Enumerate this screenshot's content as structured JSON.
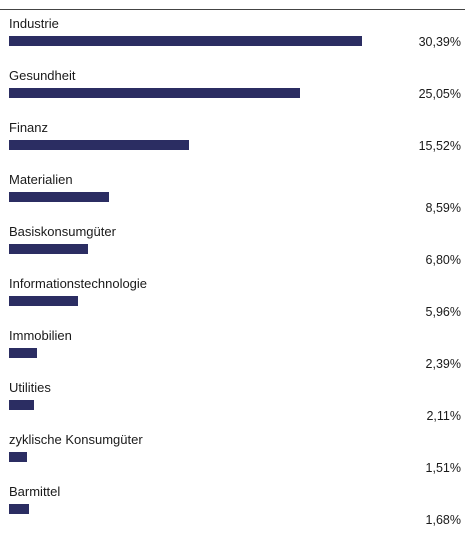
{
  "chart_data": {
    "type": "bar",
    "orientation": "horizontal",
    "categories": [
      "Industrie",
      "Gesundheit",
      "Finanz",
      "Materialien",
      "Basiskonsumgüter",
      "Informationstechnologie",
      "Immobilien",
      "Utilities",
      "zyklische Konsumgüter",
      "Barmittel"
    ],
    "values": [
      30.39,
      25.05,
      15.52,
      8.59,
      6.8,
      5.96,
      2.39,
      2.11,
      1.51,
      1.68
    ],
    "value_labels": [
      "30,39%",
      "25,05%",
      "15,52%",
      "8,59%",
      "6,80%",
      "5,96%",
      "2,39%",
      "2,11%",
      "1,51%",
      "1,68%"
    ],
    "xlim": [
      0,
      30.39
    ],
    "grid": false,
    "legend": "none",
    "bar_color": "#2b2d62"
  }
}
